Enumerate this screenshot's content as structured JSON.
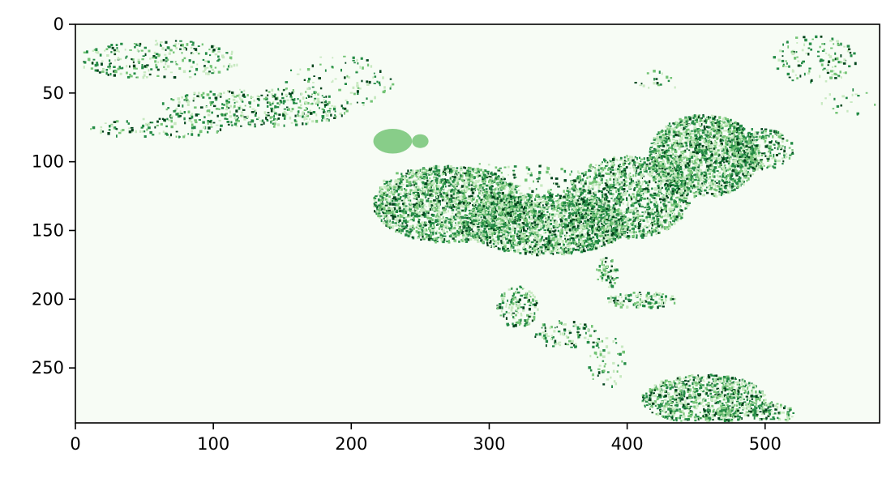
{
  "chart_data": {
    "type": "heatmap",
    "title": "",
    "xlabel": "",
    "ylabel": "",
    "colormap": "Greens",
    "colors": {
      "low": "#f7fcf5",
      "light": "#c7e9c0",
      "mid": "#74c476",
      "high": "#238b45",
      "max": "#00441b",
      "axis": "#000000"
    },
    "xlim": [
      0,
      583
    ],
    "ylim": [
      290,
      0
    ],
    "x_ticks": [
      {
        "value": 0,
        "label": "0"
      },
      {
        "value": 100,
        "label": "100"
      },
      {
        "value": 200,
        "label": "200"
      },
      {
        "value": 300,
        "label": "300"
      },
      {
        "value": 400,
        "label": "400"
      },
      {
        "value": 500,
        "label": "500"
      }
    ],
    "y_ticks": [
      {
        "value": 0,
        "label": "0"
      },
      {
        "value": 50,
        "label": "50"
      },
      {
        "value": 100,
        "label": "100"
      },
      {
        "value": 150,
        "label": "150"
      },
      {
        "value": 200,
        "label": "200"
      },
      {
        "value": 250,
        "label": "250"
      }
    ]
  }
}
